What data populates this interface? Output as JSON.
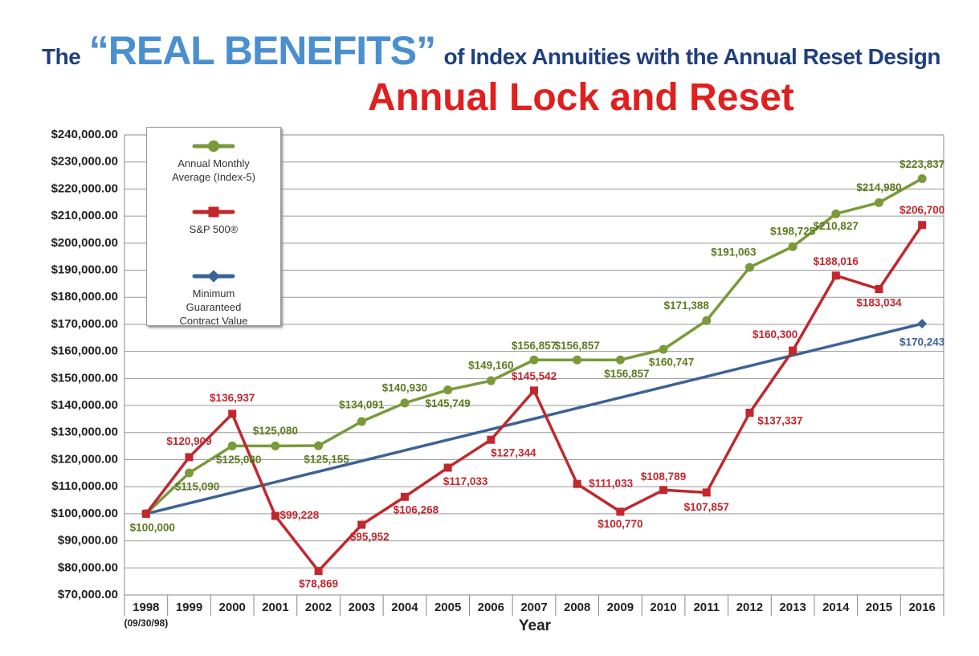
{
  "chart_data": {
    "type": "line",
    "title_parts": [
      "The",
      "“REAL BENEFITS”",
      "of Index Annuities with the Annual Reset Design"
    ],
    "subtitle": "Annual Lock and Reset",
    "x_label": "Year",
    "categories": [
      "1998",
      "1999",
      "2000",
      "2001",
      "2002",
      "2003",
      "2004",
      "2005",
      "2006",
      "2007",
      "2008",
      "2009",
      "2010",
      "2011",
      "2012",
      "2013",
      "2014",
      "2015",
      "2016"
    ],
    "first_category_note": "(09/30/98)",
    "ylim": [
      70000,
      240000
    ],
    "yticks": [
      {
        "value": 70000,
        "label": "$70,000.00"
      },
      {
        "value": 80000,
        "label": "$80,000.00"
      },
      {
        "value": 90000,
        "label": "$90,000.00"
      },
      {
        "value": 100000,
        "label": "$100,000.00"
      },
      {
        "value": 110000,
        "label": "$110,000.00"
      },
      {
        "value": 120000,
        "label": "$120,000.00"
      },
      {
        "value": 130000,
        "label": "$130,000.00"
      },
      {
        "value": 140000,
        "label": "$140,000.00"
      },
      {
        "value": 150000,
        "label": "$150,000.00"
      },
      {
        "value": 160000,
        "label": "$160,000.00"
      },
      {
        "value": 170000,
        "label": "$170,000.00"
      },
      {
        "value": 180000,
        "label": "$180,000.00"
      },
      {
        "value": 190000,
        "label": "$190,000.00"
      },
      {
        "value": 200000,
        "label": "$200,000.00"
      },
      {
        "value": 210000,
        "label": "$210,000.00"
      },
      {
        "value": 220000,
        "label": "$220,000.00"
      },
      {
        "value": 230000,
        "label": "$230,000.00"
      },
      {
        "value": 240000,
        "label": "$240,000.00"
      }
    ],
    "grid": true,
    "legend_position": "upper left",
    "series": [
      {
        "name": "Annual Monthly Average (Index-5)",
        "color": "#7a9a3a",
        "marker": "circle",
        "values": [
          100000,
          115090,
          125080,
          125080,
          125155,
          134091,
          140930,
          145749,
          149160,
          156857,
          156857,
          156857,
          160747,
          171388,
          191063,
          198725,
          210827,
          214980,
          223837
        ],
        "value_labels": [
          "$100,000",
          "$115,090",
          "$125,080",
          "$125,080",
          "$125,155",
          "$134,091",
          "$140,930",
          "$145,749",
          "$149,160",
          "$156,857",
          "$156,857",
          "$156,857",
          "$160,747",
          "$171,388",
          "$191,063",
          "$198,725",
          "$210,827",
          "$214,980",
          "$223,837"
        ]
      },
      {
        "name": "S&P 500®",
        "color": "#c1272d",
        "marker": "square",
        "values": [
          100000,
          120909,
          136937,
          99228,
          78869,
          95952,
          106268,
          117033,
          127344,
          145542,
          111033,
          100770,
          108789,
          107857,
          137337,
          160300,
          188016,
          183034,
          206700
        ],
        "value_labels": [
          null,
          "$120,909",
          "$136,937",
          "$99,228",
          "$78,869",
          "$95,952",
          "$106,268",
          "$117,033",
          "$127,344",
          "$145,542",
          "$111,033",
          "$100,770",
          "$108,789",
          "$107,857",
          "$137,337",
          "$160,300",
          "$188,016",
          "$183,034",
          "$206,700"
        ]
      },
      {
        "name": "Minimum Guaranteed Contract Value",
        "color": "#3b6396",
        "marker": "diamond",
        "values": [
          100000,
          103902,
          107805,
          111707,
          115610,
          119512,
          123414,
          127317,
          131219,
          135122,
          139024,
          142926,
          146829,
          150731,
          154634,
          158536,
          162438,
          166341,
          170243
        ],
        "value_labels": [
          null,
          null,
          null,
          null,
          null,
          null,
          null,
          null,
          null,
          null,
          null,
          null,
          null,
          null,
          null,
          null,
          null,
          null,
          "$170,243"
        ]
      }
    ]
  }
}
